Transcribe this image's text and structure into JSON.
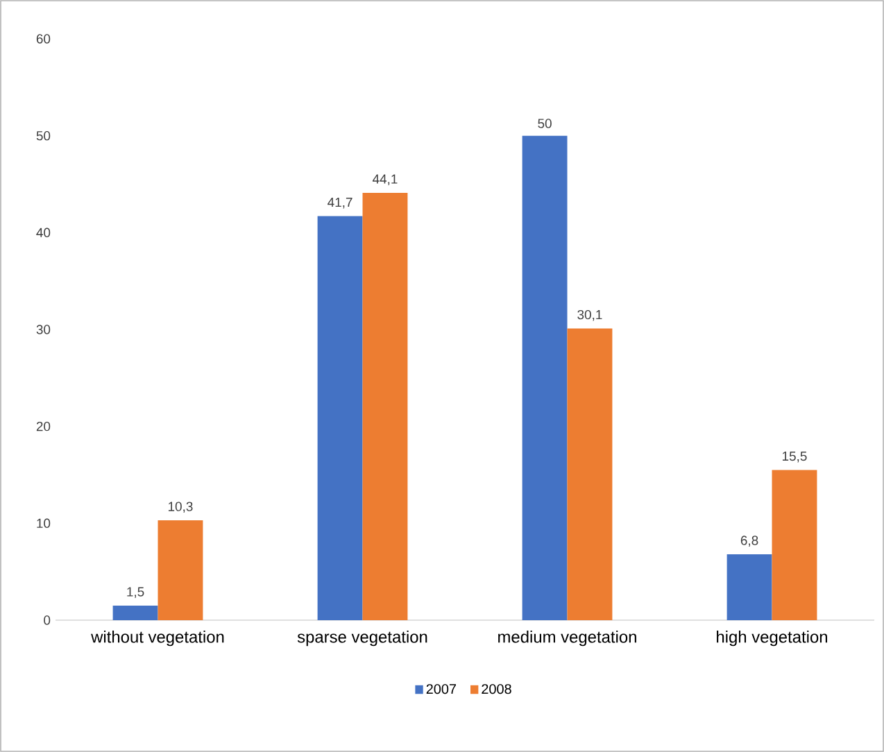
{
  "chart_data": {
    "type": "bar",
    "categories": [
      "without vegetation",
      "sparse vegetation",
      "medium vegetation",
      "high vegetation"
    ],
    "series": [
      {
        "name": "2007",
        "color": "#4472c4",
        "values": [
          1.5,
          41.7,
          50,
          6.8
        ],
        "value_labels": [
          "1,5",
          "41,7",
          "50",
          "6,8"
        ]
      },
      {
        "name": "2008",
        "color": "#ed7d31",
        "values": [
          10.3,
          44.1,
          30.1,
          15.5
        ],
        "value_labels": [
          "10,3",
          "44,1",
          "30,1",
          "15,5"
        ]
      }
    ],
    "ylim": [
      0,
      60
    ],
    "yticks": [
      0,
      10,
      20,
      30,
      40,
      50,
      60
    ],
    "legend": "bottom"
  }
}
